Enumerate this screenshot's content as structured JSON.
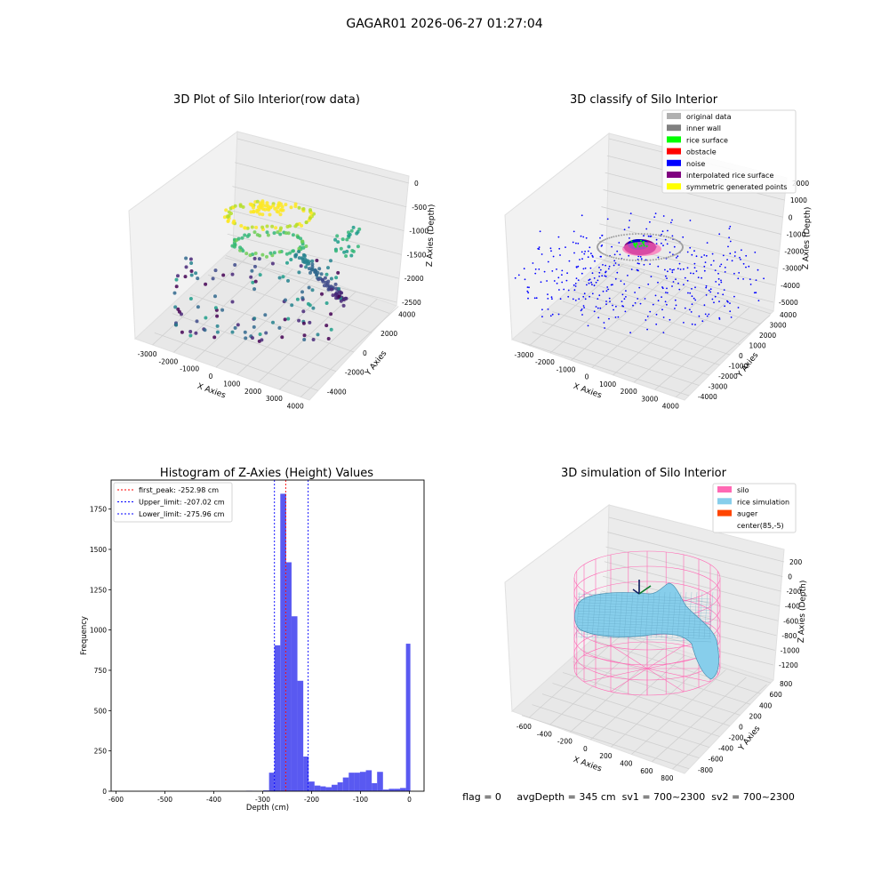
{
  "suptitle": "GAGAR01 2026-06-27 01:27:04",
  "status_line": "flag = 0     avgDepth = 345 cm  sv1 = 700~2300  sv2 = 700~2300",
  "chart_data": [
    {
      "type": "scatter",
      "projection": "3d",
      "title": "3D Plot of Silo Interior(row data)",
      "xlabel": "X Axies",
      "ylabel": "Y Axies",
      "zlabel": "Z Axies (Depth)",
      "x_ticks": [
        "-3000",
        "-2000",
        "-1000",
        "0",
        "1000",
        "2000",
        "3000",
        "4000"
      ],
      "y_ticks": [
        "-4000",
        "-2000",
        "0",
        "2000",
        "4000"
      ],
      "z_ticks": [
        "0",
        "-500",
        "-1000",
        "-1500",
        "-2000",
        "-2500"
      ],
      "colormap": "viridis",
      "grid": true
    },
    {
      "type": "scatter",
      "projection": "3d",
      "title": "3D classify of Silo Interior",
      "xlabel": "X Axies",
      "ylabel": "Y Axies",
      "zlabel": "Z Axies (Depth)",
      "x_ticks": [
        "-3000",
        "-2000",
        "-1000",
        "0",
        "1000",
        "2000",
        "3000",
        "4000"
      ],
      "y_ticks": [
        "-4000",
        "-3000",
        "-2000",
        "-1000",
        "0",
        "1000",
        "2000",
        "3000",
        "4000"
      ],
      "z_ticks": [
        "2000",
        "1000",
        "0",
        "-1000",
        "-2000",
        "-3000",
        "-4000",
        "-5000"
      ],
      "legend_position": "top-right",
      "legend": [
        {
          "label": "original data",
          "color": "#b0b0b0"
        },
        {
          "label": "inner wall",
          "color": "#808080"
        },
        {
          "label": "rice surface",
          "color": "#00ff00"
        },
        {
          "label": "obstacle",
          "color": "#ff0000"
        },
        {
          "label": "noise",
          "color": "#0000ff"
        },
        {
          "label": "interpolated rice surface",
          "color": "#800080"
        },
        {
          "label": "symmetric generated points",
          "color": "#ffff00"
        }
      ]
    },
    {
      "type": "bar",
      "subtype": "histogram",
      "title": "Histogram of Z-Axies (Height) Values",
      "xlabel": "Depth (cm)",
      "ylabel": "Frequency",
      "xlim": [
        -610,
        30
      ],
      "ylim": [
        0,
        1930
      ],
      "x_ticks": [
        -600,
        -500,
        -400,
        -300,
        -200,
        -100,
        0
      ],
      "y_ticks": [
        0,
        250,
        500,
        750,
        1000,
        1250,
        1500,
        1750
      ],
      "bar_color": "#5050f0",
      "bins": [
        {
          "x0": -612,
          "x1": -334,
          "v": 0
        },
        {
          "x0": -334,
          "x1": -322,
          "v": 3
        },
        {
          "x0": -322,
          "x1": -311,
          "v": 2
        },
        {
          "x0": -311,
          "x1": -299,
          "v": 1
        },
        {
          "x0": -299,
          "x1": -287,
          "v": 5
        },
        {
          "x0": -287,
          "x1": -276,
          "v": 115
        },
        {
          "x0": -276,
          "x1": -264,
          "v": 905
        },
        {
          "x0": -264,
          "x1": -252,
          "v": 1845
        },
        {
          "x0": -252,
          "x1": -241,
          "v": 1420
        },
        {
          "x0": -241,
          "x1": -229,
          "v": 1085
        },
        {
          "x0": -229,
          "x1": -217,
          "v": 685
        },
        {
          "x0": -217,
          "x1": -206,
          "v": 215
        },
        {
          "x0": -206,
          "x1": -194,
          "v": 60
        },
        {
          "x0": -194,
          "x1": -182,
          "v": 35
        },
        {
          "x0": -182,
          "x1": -171,
          "v": 30
        },
        {
          "x0": -171,
          "x1": -159,
          "v": 25
        },
        {
          "x0": -159,
          "x1": -147,
          "v": 40
        },
        {
          "x0": -147,
          "x1": -136,
          "v": 55
        },
        {
          "x0": -136,
          "x1": -124,
          "v": 85
        },
        {
          "x0": -124,
          "x1": -112,
          "v": 115
        },
        {
          "x0": -112,
          "x1": -101,
          "v": 115
        },
        {
          "x0": -101,
          "x1": -89,
          "v": 120
        },
        {
          "x0": -89,
          "x1": -77,
          "v": 130
        },
        {
          "x0": -77,
          "x1": -66,
          "v": 50
        },
        {
          "x0": -66,
          "x1": -54,
          "v": 120
        },
        {
          "x0": -54,
          "x1": -42,
          "v": 10
        },
        {
          "x0": -42,
          "x1": -31,
          "v": 15
        },
        {
          "x0": -31,
          "x1": -19,
          "v": 15
        },
        {
          "x0": -19,
          "x1": -7,
          "v": 20
        },
        {
          "x0": -7,
          "x1": 2,
          "v": 915
        }
      ],
      "vlines": [
        {
          "x": -252.98,
          "label": "first_peak: -252.98 cm",
          "color": "#ff0000"
        },
        {
          "x": -207.02,
          "label": "Upper_limit: -207.02 cm",
          "color": "#0000ff"
        },
        {
          "x": -275.96,
          "label": "Lower_limit: -275.96 cm",
          "color": "#0000ff"
        }
      ],
      "legend_position": "top-left"
    },
    {
      "type": "surface",
      "projection": "3d",
      "title": "3D simulation of Silo Interior",
      "xlabel": "X Axies",
      "ylabel": "Y Axies",
      "zlabel": "Z Axies (Depth)",
      "x_ticks": [
        "-600",
        "-400",
        "-200",
        "0",
        "200",
        "400",
        "600",
        "800"
      ],
      "y_ticks": [
        "-800",
        "-600",
        "-400",
        "-200",
        "0",
        "200",
        "400",
        "600",
        "800"
      ],
      "z_ticks": [
        "200",
        "0",
        "-200",
        "-400",
        "-600",
        "-800",
        "-1000",
        "-1200"
      ],
      "legend_position": "top-right",
      "legend": [
        {
          "label": "silo",
          "color": "#ff69b4"
        },
        {
          "label": "rice simulation",
          "color": "#87ceeb"
        },
        {
          "label": "auger",
          "color": "#ff4500"
        },
        {
          "label": "center(85,-5)",
          "color": "#ffffff"
        }
      ]
    }
  ]
}
